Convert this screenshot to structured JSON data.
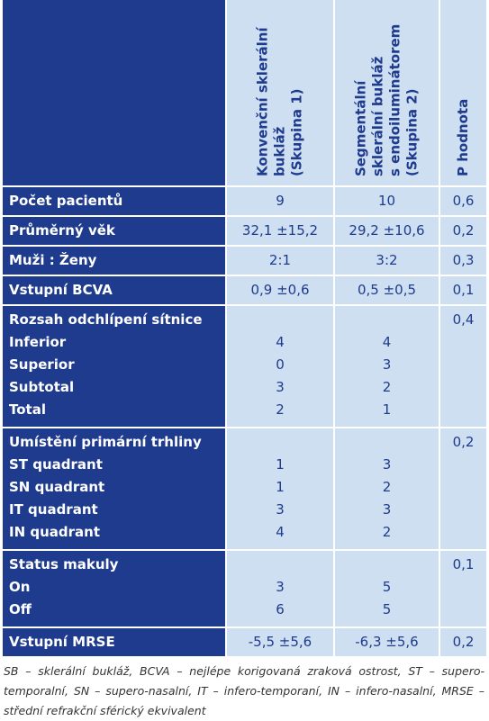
{
  "table": {
    "headers": [
      [
        "Konvenční sklerální",
        "bukláž",
        "(Skupina 1)"
      ],
      [
        "Segmentální",
        "sklerální bukláž",
        "s endoiluminátorem",
        "(Skupina 2)"
      ],
      [
        "P hodnota"
      ]
    ],
    "rows": [
      {
        "label": "Počet pacientů",
        "values": [
          "9",
          "10",
          "0,6"
        ]
      },
      {
        "label": "Průměrný věk",
        "values": [
          "32,1 ±15,2",
          "29,2 ±10,6",
          "0,2"
        ]
      },
      {
        "label": "Muži : Ženy",
        "values": [
          "2:1",
          "3:2",
          "0,3"
        ]
      },
      {
        "label": "Vstupní BCVA",
        "values": [
          "0,9 ±0,6",
          "0,5 ±0,5",
          "0,1"
        ]
      },
      {
        "label": "Rozsah odchlípení sítnice",
        "p": "0,4",
        "items": [
          {
            "label": "Inferior",
            "values": [
              "4",
              "4"
            ]
          },
          {
            "label": "Superior",
            "values": [
              "0",
              "3"
            ]
          },
          {
            "label": "Subtotal",
            "values": [
              "3",
              "2"
            ]
          },
          {
            "label": "Total",
            "values": [
              "2",
              "1"
            ]
          }
        ]
      },
      {
        "label": "Umístění primární trhliny",
        "p": "0,2",
        "items": [
          {
            "label": "ST quadrant",
            "values": [
              "1",
              "3"
            ]
          },
          {
            "label": "SN quadrant",
            "values": [
              "1",
              "2"
            ]
          },
          {
            "label": "IT quadrant",
            "values": [
              "3",
              "3"
            ]
          },
          {
            "label": "IN quadrant",
            "values": [
              "4",
              "2"
            ]
          }
        ]
      },
      {
        "label": "Status makuly",
        "p": "0,1",
        "items": [
          {
            "label": "On",
            "values": [
              "3",
              "5"
            ]
          },
          {
            "label": "Off",
            "values": [
              "6",
              "5"
            ]
          }
        ]
      },
      {
        "label": "Vstupní MRSE",
        "values": [
          "-5,5 ±5,6",
          "-6,3 ±5,6",
          "0,2"
        ]
      }
    ],
    "footnote": "SB – sklerální bukláž, BCVA – nejlépe korigovaná zraková ostrost, ST – supero-temporalní, SN – supero-nasalní, IT – infero-temporaní, IN – infero-nasalní, MRSE – střední refrakční sférický ekvivalent"
  }
}
